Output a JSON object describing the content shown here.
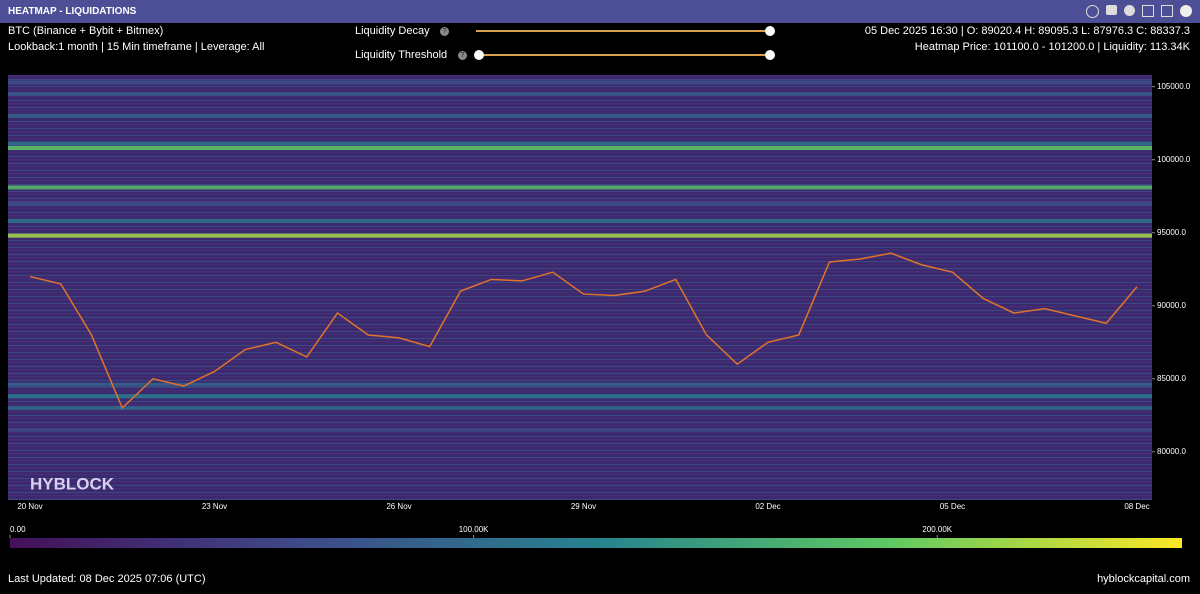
{
  "header": {
    "title": "HEATMAP - LIQUIDATIONS"
  },
  "info": {
    "symbol": "BTC (Binance + Bybit + Bitmex)",
    "settings": "Lookback:1 month | 15 Min timeframe | Leverage: All"
  },
  "controls": {
    "decay": "Liquidity Decay",
    "threshold": "Liquidity Threshold"
  },
  "ohlc": "05 Dec 2025 16:30 | O: 89020.4 H: 89095.3 L: 87976.3 C: 88337.3",
  "heatmap_info": "Heatmap Price: 101100.0 - 101200.0 | Liquidity: 113.34K",
  "watermark": "HYBLOCK",
  "chart_data": {
    "type": "heatmap",
    "categories": [
      "20 Nov",
      null,
      null,
      null,
      null,
      null,
      "23 Nov",
      null,
      null,
      null,
      null,
      null,
      "26 Nov",
      null,
      null,
      null,
      null,
      null,
      "29 Nov",
      null,
      null,
      null,
      null,
      null,
      "02 Dec",
      null,
      null,
      null,
      null,
      null,
      "05 Dec",
      null,
      null,
      null,
      null,
      null,
      "08 Dec"
    ],
    "series": [
      {
        "color": "#e0732c",
        "values": [
          92000,
          91500,
          88000,
          83000,
          85000,
          84500,
          85500,
          87000,
          87500,
          86500,
          89500,
          88000,
          87800,
          87200,
          91000,
          91800,
          91700,
          92300,
          90800,
          90700,
          91000,
          91800,
          88000,
          86000,
          87500,
          88000,
          93000,
          93200,
          93600,
          92800,
          92300,
          90500,
          89500,
          89800,
          89300,
          88800,
          91300
        ]
      }
    ],
    "levels": [
      105300,
      104500,
      103000,
      101100,
      100800,
      98100,
      97000,
      95800,
      94800,
      84600,
      83800,
      83000,
      81500
    ],
    "liquidity": [
      70000,
      80000,
      90000,
      113340,
      190000,
      180000,
      70000,
      110000,
      220000,
      90000,
      120000,
      100000,
      60000
    ],
    "ylim": [
      76700,
      105800
    ],
    "yticks": [
      {
        "value": 80000,
        "label": "80000.0"
      },
      {
        "value": 85000,
        "label": "85000.0"
      },
      {
        "value": 90000,
        "label": "90000.0"
      },
      {
        "value": 95000,
        "label": "95000.0"
      },
      {
        "value": 100000,
        "label": "100000.0"
      },
      {
        "value": 105000,
        "label": "105000.0"
      }
    ],
    "clim": [
      0,
      252800
    ],
    "cticks": [
      {
        "value": 0,
        "label": "0.00"
      },
      {
        "value": 100000,
        "label": "100.00K"
      },
      {
        "value": 200000,
        "label": "200.00K"
      }
    ]
  },
  "footer": {
    "updated": "Last Updated: 08 Dec 2025 07:06 (UTC)",
    "site": "hyblockcapital.com"
  }
}
